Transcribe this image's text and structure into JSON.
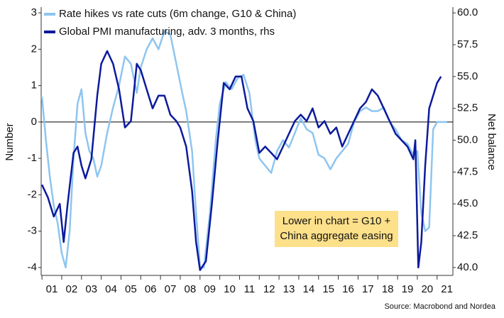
{
  "chart_data": {
    "type": "line",
    "y_label": "Number",
    "y2_label": "Net balance",
    "annotation": [
      "Lower in chart = G10 +",
      "China aggregate easing"
    ],
    "source": "Source: Macrobond and Nordea",
    "xlim": [
      2000.96,
      2021.8
    ],
    "xticks": [
      {
        "value": 2001,
        "label": "01"
      },
      {
        "value": 2002,
        "label": "02"
      },
      {
        "value": 2003,
        "label": "03"
      },
      {
        "value": 2004,
        "label": "04"
      },
      {
        "value": 2005,
        "label": "05"
      },
      {
        "value": 2006,
        "label": "06"
      },
      {
        "value": 2007,
        "label": "07"
      },
      {
        "value": 2008,
        "label": "08"
      },
      {
        "value": 2009,
        "label": "09"
      },
      {
        "value": 2010,
        "label": "10"
      },
      {
        "value": 2011,
        "label": "11"
      },
      {
        "value": 2012,
        "label": "12"
      },
      {
        "value": 2013,
        "label": "13"
      },
      {
        "value": 2014,
        "label": "14"
      },
      {
        "value": 2015,
        "label": "15"
      },
      {
        "value": 2016,
        "label": "16"
      },
      {
        "value": 2017,
        "label": "17"
      },
      {
        "value": 2018,
        "label": "18"
      },
      {
        "value": 2019,
        "label": "19"
      },
      {
        "value": 2020,
        "label": "20"
      },
      {
        "value": 2021,
        "label": "21"
      }
    ],
    "ylim": [
      -4.1,
      3.1
    ],
    "yticks": [
      -4,
      -3,
      -2,
      -1,
      0,
      1,
      2,
      3
    ],
    "y2lim": [
      39.714,
      60.286
    ],
    "y2ticks": [
      {
        "value": 40,
        "label": "40.0"
      },
      {
        "value": 42.5,
        "label": "42.5"
      },
      {
        "value": 45,
        "label": "45.0"
      },
      {
        "value": 47.5,
        "label": "47.5"
      },
      {
        "value": 50,
        "label": "50.0"
      },
      {
        "value": 52.5,
        "label": "52.5"
      },
      {
        "value": 55,
        "label": "55.0"
      },
      {
        "value": 57.5,
        "label": "57.5"
      },
      {
        "value": 60,
        "label": "60.0"
      }
    ],
    "series": [
      {
        "name": "Rate hikes vs rate cuts (6m change, G10 & China)",
        "color": "#8ec5f0",
        "x": [
          2001.0,
          2001.2,
          2001.4,
          2001.6,
          2001.8,
          2002.0,
          2002.2,
          2002.4,
          2002.6,
          2002.8,
          2003.0,
          2003.2,
          2003.4,
          2003.6,
          2003.8,
          2004.0,
          2004.3,
          2004.6,
          2004.9,
          2005.2,
          2005.5,
          2005.8,
          2006.0,
          2006.3,
          2006.6,
          2006.9,
          2007.2,
          2007.5,
          2007.8,
          2008.1,
          2008.3,
          2008.6,
          2008.8,
          2009.0,
          2009.2,
          2009.5,
          2009.8,
          2010.0,
          2010.3,
          2010.6,
          2010.9,
          2011.2,
          2011.5,
          2011.8,
          2012.0,
          2012.3,
          2012.6,
          2012.9,
          2013.2,
          2013.5,
          2013.8,
          2014.1,
          2014.4,
          2014.7,
          2015.0,
          2015.3,
          2015.6,
          2015.9,
          2016.2,
          2016.5,
          2016.8,
          2017.1,
          2017.4,
          2017.7,
          2018.0,
          2018.3,
          2018.6,
          2018.9,
          2019.2,
          2019.5,
          2019.8,
          2020.0,
          2020.2,
          2020.4,
          2020.6,
          2020.8,
          2021.0,
          2021.5
        ],
        "values": [
          0.7,
          -0.5,
          -1.5,
          -2.3,
          -2.8,
          -3.6,
          -4.0,
          -3.0,
          -1.0,
          0.5,
          0.9,
          -0.3,
          -0.8,
          -1.0,
          -1.5,
          -1.2,
          -0.3,
          0.4,
          1.0,
          1.8,
          1.6,
          0.8,
          1.5,
          2.0,
          2.3,
          2.0,
          2.5,
          2.4,
          1.6,
          0.8,
          0.3,
          -0.8,
          -2.5,
          -4.0,
          -4.0,
          -2.5,
          -0.5,
          0.5,
          1.1,
          0.9,
          1.2,
          1.3,
          0.8,
          -0.5,
          -1.0,
          -1.2,
          -1.4,
          -0.8,
          -0.5,
          -0.7,
          -0.3,
          0.1,
          -0.2,
          -0.3,
          -0.9,
          -1.0,
          -1.3,
          -1.0,
          -0.8,
          -0.6,
          0.0,
          0.3,
          0.4,
          0.3,
          0.3,
          0.4,
          0.0,
          -0.2,
          -0.5,
          -0.6,
          -0.9,
          -0.8,
          -2.5,
          -3.0,
          -2.9,
          -0.2,
          0.0,
          0.0
        ]
      },
      {
        "name": "Global PMI manufacturing, adv. 3 months, rhs",
        "color": "#0d1a9c",
        "axis": "y2",
        "x": [
          2001.0,
          2001.3,
          2001.6,
          2001.9,
          2002.1,
          2002.3,
          2002.6,
          2002.8,
          2003.0,
          2003.2,
          2003.5,
          2003.8,
          2004.0,
          2004.3,
          2004.6,
          2004.9,
          2005.2,
          2005.5,
          2005.8,
          2006.0,
          2006.3,
          2006.6,
          2006.9,
          2007.2,
          2007.5,
          2007.8,
          2008.0,
          2008.3,
          2008.6,
          2008.8,
          2009.0,
          2009.3,
          2009.6,
          2009.9,
          2010.2,
          2010.5,
          2010.8,
          2011.1,
          2011.4,
          2011.7,
          2012.0,
          2012.3,
          2012.6,
          2012.9,
          2013.2,
          2013.5,
          2013.8,
          2014.1,
          2014.4,
          2014.7,
          2015.0,
          2015.3,
          2015.6,
          2015.9,
          2016.2,
          2016.5,
          2016.8,
          2017.1,
          2017.4,
          2017.7,
          2018.0,
          2018.3,
          2018.6,
          2018.9,
          2019.2,
          2019.5,
          2019.8,
          2019.9,
          2020.05,
          2020.2,
          2020.4,
          2020.6,
          2020.8,
          2021.0,
          2021.2
        ],
        "values": [
          46.5,
          45.5,
          44.0,
          45.0,
          42.0,
          45.0,
          49.0,
          49.5,
          48.0,
          47.0,
          48.5,
          53.5,
          56.0,
          57.0,
          56.0,
          54.0,
          51.0,
          51.5,
          56.0,
          55.5,
          54.0,
          52.5,
          53.5,
          53.5,
          52.0,
          51.5,
          51.0,
          49.5,
          46.0,
          42.0,
          39.8,
          40.5,
          45.0,
          50.0,
          54.5,
          54.0,
          55.0,
          55.0,
          52.5,
          51.5,
          49.0,
          49.5,
          49.0,
          48.5,
          49.5,
          50.5,
          51.5,
          52.0,
          51.5,
          52.5,
          51.0,
          51.5,
          50.5,
          51.0,
          49.5,
          50.5,
          51.5,
          52.5,
          53.0,
          54.0,
          53.5,
          52.5,
          51.5,
          50.5,
          50.0,
          49.5,
          48.5,
          50.0,
          40.0,
          42.0,
          48.0,
          52.5,
          53.5,
          54.5,
          55.0
        ]
      }
    ]
  }
}
